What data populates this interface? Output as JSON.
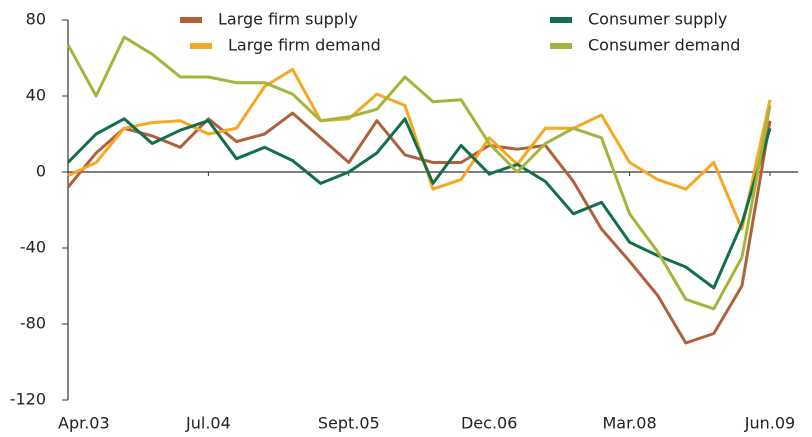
{
  "chart_data": {
    "type": "line",
    "categories": [
      "Apr.03",
      null,
      null,
      null,
      null,
      "Jul.04",
      null,
      null,
      null,
      null,
      "Sept.05",
      null,
      null,
      null,
      null,
      "Dec.06",
      null,
      null,
      null,
      null,
      "Mar.08",
      null,
      null,
      null,
      null,
      "Jun.09"
    ],
    "series": [
      {
        "name": "Large firm supply",
        "color": "#b0603a",
        "values": [
          -8,
          10,
          23,
          19,
          13,
          28,
          16,
          20,
          31,
          18,
          5,
          27,
          9,
          5,
          5,
          14,
          12,
          14,
          -5,
          -30,
          -47,
          -65,
          -90,
          -85,
          -60,
          27
        ]
      },
      {
        "name": "Large firm demand",
        "color": "#f7a823",
        "values": [
          -2,
          5,
          23,
          26,
          27,
          20,
          23,
          45,
          54,
          27,
          28,
          41,
          35,
          -9,
          -4,
          18,
          4,
          23,
          23,
          30,
          5,
          -4,
          -9,
          5,
          -30,
          38
        ]
      },
      {
        "name": "Consumer supply",
        "color": "#11704a",
        "values": [
          5,
          20,
          28,
          15,
          22,
          27,
          7,
          13,
          6,
          -6,
          0,
          10,
          28,
          -6,
          14,
          -1,
          4,
          -5,
          -22,
          -16,
          -37,
          -44,
          -50,
          -61,
          -27,
          23
        ]
      },
      {
        "name": "Consumer demand",
        "color": "#a5b43a",
        "values": [
          67,
          40,
          71,
          62,
          50,
          50,
          47,
          47,
          41,
          27,
          29,
          33,
          50,
          37,
          38,
          15,
          0,
          15,
          23,
          18,
          -22,
          -42,
          -67,
          -72,
          -45,
          35
        ]
      }
    ],
    "ylim": [
      -120,
      80
    ],
    "yticks": [
      -120,
      -80,
      -40,
      0,
      40,
      80
    ],
    "grid": false
  }
}
